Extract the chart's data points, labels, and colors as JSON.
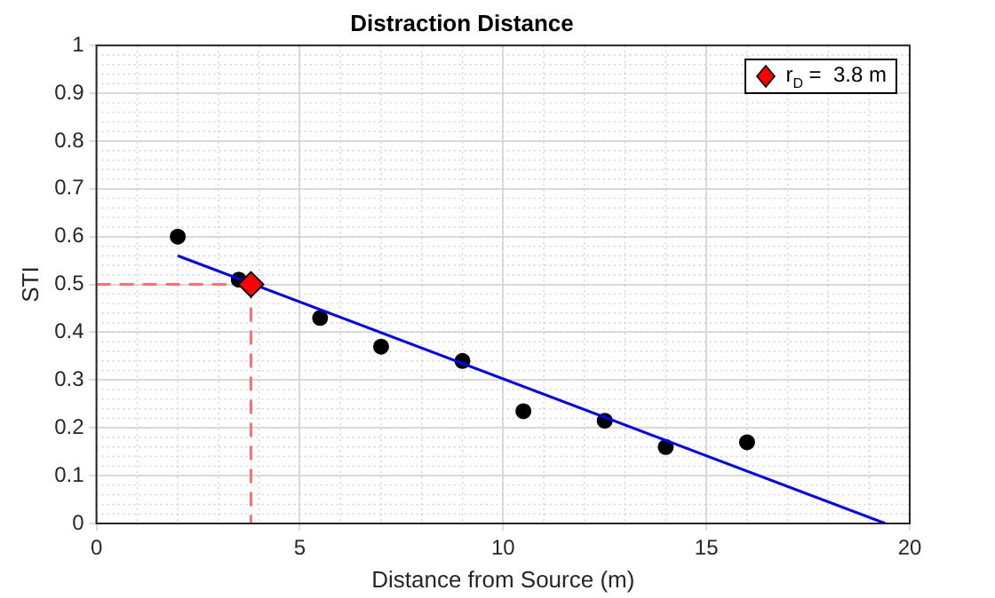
{
  "chart_data": {
    "type": "scatter",
    "title": "Distraction Distance",
    "xlabel": "Distance from Source (m)",
    "ylabel": "STI",
    "xlim": [
      0,
      20
    ],
    "xticks": [
      0,
      5,
      10,
      15,
      20
    ],
    "ylim": [
      0,
      1
    ],
    "yticks": [
      0,
      0.1,
      0.2,
      0.3,
      0.4,
      0.5,
      0.6,
      0.7,
      0.8,
      0.9,
      1
    ],
    "grid": true,
    "legend": "top right",
    "series": [
      {
        "type": "line",
        "color": "#ff6f6f",
        "line_style": "dashed",
        "marker": "none",
        "x": [
          0,
          3.8
        ],
        "values": [
          0.5,
          0.5
        ]
      },
      {
        "type": "line",
        "color": "#ff6f6f",
        "line_style": "dashed",
        "marker": "none",
        "x": [
          3.8,
          3.8
        ],
        "values": [
          0.5,
          0
        ]
      },
      {
        "color": "#000000",
        "marker": "circle",
        "x": [
          2,
          3.5,
          5.5,
          7,
          9,
          10.5,
          12.5,
          14,
          16
        ],
        "values": [
          0.6,
          0.51,
          0.43,
          0.37,
          0.34,
          0.235,
          0.215,
          0.16,
          0.17
        ]
      },
      {
        "type": "line",
        "color": "#0000ff",
        "line_style": "solid",
        "marker": "none",
        "x": [
          2,
          19.4
        ],
        "values": [
          0.56,
          0
        ]
      },
      {
        "name": "r$_{D}$ =  3.8 m",
        "color": "#ff0000",
        "marker": "diamond",
        "x": [
          3.8
        ],
        "values": [
          0.5
        ]
      }
    ]
  }
}
